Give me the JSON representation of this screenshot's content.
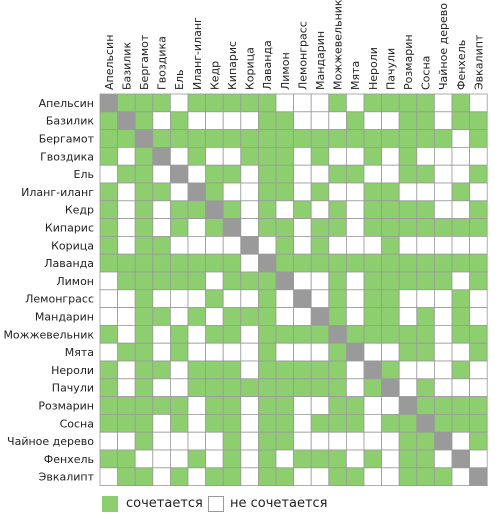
{
  "chart_data": {
    "type": "heatmap",
    "title": "",
    "oils": [
      "Апельсин",
      "Базилик",
      "Бергамот",
      "Гвоздика",
      "Ель",
      "Иланг-иланг",
      "Кедр",
      "Кипарис",
      "Корица",
      "Лаванда",
      "Лимон",
      "Лемонграсс",
      "Мандарин",
      "Можжевельник",
      "Мята",
      "Нероли",
      "Пачули",
      "Розмарин",
      "Сосна",
      "Чайное дерево",
      "Фенхель",
      "Эвкалипт"
    ],
    "matrix": [
      [
        2,
        1,
        1,
        1,
        0,
        1,
        1,
        1,
        1,
        1,
        0,
        0,
        0,
        1,
        0,
        1,
        1,
        1,
        1,
        0,
        1,
        0
      ],
      [
        1,
        2,
        1,
        0,
        1,
        0,
        0,
        0,
        0,
        1,
        1,
        0,
        0,
        0,
        1,
        0,
        0,
        1,
        1,
        0,
        1,
        1
      ],
      [
        1,
        1,
        2,
        1,
        1,
        1,
        1,
        1,
        1,
        1,
        1,
        1,
        1,
        1,
        1,
        1,
        1,
        1,
        1,
        1,
        0,
        1
      ],
      [
        1,
        0,
        1,
        2,
        0,
        1,
        0,
        0,
        1,
        1,
        1,
        0,
        1,
        0,
        0,
        1,
        0,
        1,
        0,
        0,
        0,
        0
      ],
      [
        0,
        1,
        1,
        0,
        2,
        0,
        1,
        1,
        0,
        1,
        1,
        0,
        0,
        1,
        1,
        0,
        0,
        1,
        1,
        0,
        0,
        1
      ],
      [
        1,
        0,
        1,
        1,
        0,
        2,
        1,
        0,
        0,
        1,
        1,
        0,
        1,
        0,
        0,
        1,
        1,
        0,
        0,
        0,
        1,
        0
      ],
      [
        1,
        0,
        1,
        0,
        1,
        1,
        2,
        1,
        0,
        1,
        0,
        1,
        0,
        1,
        0,
        1,
        1,
        1,
        1,
        0,
        0,
        1
      ],
      [
        1,
        0,
        1,
        0,
        1,
        0,
        1,
        2,
        0,
        1,
        1,
        0,
        1,
        1,
        0,
        1,
        1,
        1,
        1,
        1,
        1,
        1
      ],
      [
        1,
        0,
        1,
        1,
        0,
        0,
        0,
        0,
        2,
        0,
        1,
        0,
        1,
        0,
        0,
        0,
        1,
        0,
        0,
        0,
        0,
        0
      ],
      [
        1,
        1,
        1,
        1,
        1,
        1,
        1,
        1,
        0,
        2,
        1,
        1,
        1,
        1,
        1,
        1,
        1,
        1,
        1,
        1,
        1,
        1
      ],
      [
        0,
        1,
        1,
        1,
        1,
        1,
        0,
        1,
        1,
        1,
        2,
        0,
        0,
        1,
        0,
        1,
        1,
        1,
        1,
        1,
        0,
        1
      ],
      [
        0,
        0,
        1,
        0,
        0,
        0,
        1,
        0,
        0,
        1,
        0,
        2,
        0,
        1,
        0,
        1,
        1,
        0,
        0,
        0,
        1,
        0
      ],
      [
        0,
        0,
        1,
        1,
        0,
        1,
        0,
        1,
        1,
        1,
        0,
        0,
        2,
        1,
        0,
        1,
        1,
        0,
        1,
        0,
        1,
        0
      ],
      [
        1,
        0,
        1,
        0,
        1,
        0,
        1,
        1,
        0,
        1,
        1,
        1,
        1,
        2,
        1,
        1,
        1,
        1,
        1,
        0,
        1,
        1
      ],
      [
        0,
        1,
        1,
        0,
        1,
        0,
        0,
        0,
        0,
        1,
        0,
        0,
        0,
        1,
        2,
        0,
        0,
        1,
        1,
        0,
        0,
        1
      ],
      [
        1,
        0,
        1,
        1,
        0,
        1,
        1,
        1,
        0,
        1,
        1,
        1,
        1,
        1,
        0,
        2,
        1,
        0,
        0,
        0,
        1,
        0
      ],
      [
        1,
        0,
        1,
        0,
        0,
        1,
        1,
        1,
        1,
        1,
        1,
        1,
        1,
        1,
        0,
        1,
        2,
        0,
        1,
        0,
        0,
        0
      ],
      [
        1,
        1,
        1,
        1,
        1,
        0,
        1,
        1,
        0,
        1,
        1,
        0,
        0,
        1,
        1,
        0,
        0,
        2,
        1,
        1,
        1,
        1
      ],
      [
        1,
        1,
        1,
        0,
        1,
        0,
        1,
        1,
        0,
        1,
        1,
        0,
        1,
        1,
        1,
        0,
        1,
        1,
        2,
        1,
        1,
        1
      ],
      [
        0,
        0,
        1,
        0,
        0,
        0,
        0,
        1,
        0,
        1,
        1,
        0,
        0,
        0,
        0,
        0,
        0,
        1,
        1,
        2,
        0,
        1
      ],
      [
        1,
        1,
        0,
        0,
        0,
        1,
        0,
        1,
        0,
        1,
        0,
        1,
        1,
        1,
        0,
        1,
        0,
        1,
        1,
        0,
        2,
        0
      ],
      [
        0,
        1,
        1,
        0,
        1,
        0,
        1,
        1,
        0,
        1,
        1,
        0,
        0,
        1,
        1,
        0,
        0,
        1,
        1,
        1,
        0,
        2
      ]
    ],
    "value_meaning": {
      "1": "сочетается",
      "0": "не сочетается",
      "2": "diagonal"
    },
    "colors": {
      "on": "#8dcf6e",
      "off": "#ffffff",
      "diagonal": "#9a9a9a",
      "grid": "#9a9a9a"
    }
  },
  "legend": {
    "compatible_label": "сочетается",
    "incompatible_label": "не сочетается"
  }
}
